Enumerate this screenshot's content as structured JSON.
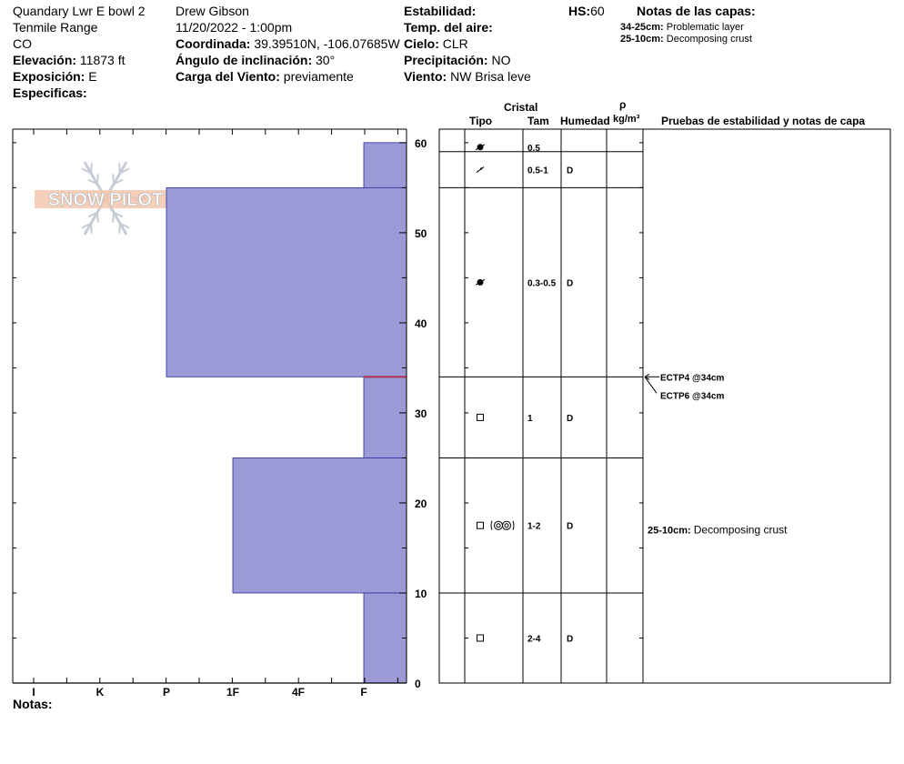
{
  "site": {
    "name": "Quandary Lwr E bowl 2",
    "range": "Tenmile Range",
    "state": "CO",
    "elevation_label": "Elevación:",
    "elevation_value": "11873 ft",
    "aspect_label": "Exposición:",
    "aspect_value": "E",
    "specifics_label": "Especificas:"
  },
  "observation": {
    "observer": "Drew Gibson",
    "datetime": "11/20/2022 - 1:00pm",
    "coord_label": "Coordinada:",
    "coord_value": "39.39510N, -106.07685W",
    "incline_label": "Ángulo de inclinación:",
    "incline_value": "30°",
    "wind_load_label": "Carga del Viento:",
    "wind_load_value": "previamente"
  },
  "conditions": {
    "stability_label": "Estabilidad:",
    "air_temp_label": "Temp. del aire:",
    "sky_label": "Cielo:",
    "sky_value": "CLR",
    "precip_label": "Precipitación:",
    "precip_value": "NO",
    "wind_label": "Viento:",
    "wind_value": "NW Brisa leve",
    "hs_label": "HS:",
    "hs_value": "60"
  },
  "layer_notes": {
    "title": "Notas de las capas:",
    "items": [
      {
        "range": "34-25cm:",
        "text": "Problematic layer"
      },
      {
        "range": "25-10cm:",
        "text": "Decomposing crust"
      }
    ]
  },
  "logo_text": "SNOW PILOT",
  "footer": {
    "notes_label": "Notas:"
  },
  "table": {
    "headers": {
      "cristal": "Cristal",
      "tipo": "Tipo",
      "tam": "Tam",
      "humedad": "Humedad",
      "rho": "ρ",
      "density_unit": "kg/m³",
      "tests": "Pruebas de estabilidad y notas de capa"
    },
    "layers": [
      {
        "top": 60,
        "bottom": 59,
        "form": "rounding-grains",
        "size": "0.5",
        "moisture": ""
      },
      {
        "top": 59,
        "bottom": 55,
        "form": "decomposing-fragments",
        "size": "0.5-1",
        "moisture": "D"
      },
      {
        "top": 55,
        "bottom": 34,
        "form": "rounding-grains",
        "size": "0.3-0.5",
        "moisture": "D"
      },
      {
        "top": 34,
        "bottom": 25,
        "form": "faceted",
        "size": "1",
        "moisture": "D"
      },
      {
        "top": 25,
        "bottom": 10,
        "form": "faceted+melt-freeze",
        "size": "1-2",
        "moisture": "D"
      },
      {
        "top": 10,
        "bottom": 0,
        "form": "faceted",
        "size": "2-4",
        "moisture": "D"
      }
    ],
    "tests": [
      {
        "depth": 34,
        "label": "ECTP4 @34cm"
      },
      {
        "depth": 34,
        "label": "ECTP6 @34cm"
      }
    ],
    "layer_comment": {
      "depth": 17,
      "range": "25-10cm:",
      "text": "Decomposing crust"
    }
  },
  "chart_data": {
    "type": "bar",
    "orientation": "horizontal",
    "title": "",
    "xlabel": "",
    "ylabel": "",
    "x_categories": [
      "I",
      "K",
      "P",
      "1F",
      "4F",
      "F"
    ],
    "y_ticks": [
      0,
      10,
      20,
      30,
      40,
      50,
      60
    ],
    "ylim": [
      0,
      60
    ],
    "hardness_layers": [
      {
        "top": 60,
        "bottom": 55,
        "hardness": "F"
      },
      {
        "top": 55,
        "bottom": 34,
        "hardness": "P"
      },
      {
        "top": 34,
        "bottom": 25,
        "hardness": "F"
      },
      {
        "top": 25,
        "bottom": 10,
        "hardness": "1F"
      },
      {
        "top": 10,
        "bottom": 0,
        "hardness": "F"
      }
    ],
    "problem_layer_depth": 34,
    "colors": {
      "fill": "#9c9ad6",
      "outline": "#2b2b9a",
      "problem": "#b0304a"
    }
  }
}
